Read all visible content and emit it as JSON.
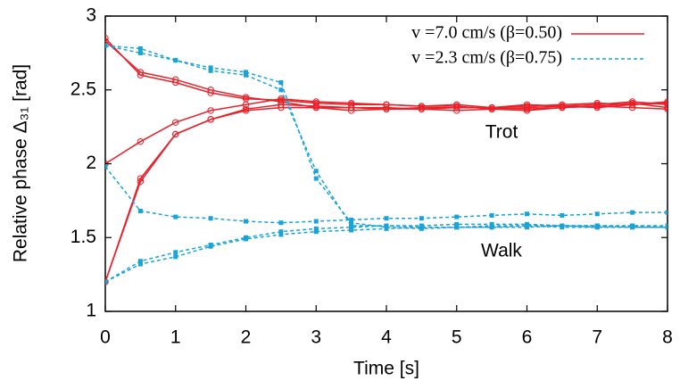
{
  "chart_data": {
    "type": "line",
    "x_label": "Time [s]",
    "y_label": "Relative phase Δ₃₁ [rad]",
    "annotations": [
      "Trot",
      "Walk"
    ],
    "x": [
      0,
      0.5,
      1,
      1.5,
      2,
      2.5,
      3,
      3.5,
      4,
      4.5,
      5,
      5.5,
      6,
      6.5,
      7,
      7.5,
      8
    ],
    "xlim": [
      0,
      8
    ],
    "xticks": [
      0,
      1,
      2,
      3,
      4,
      5,
      6,
      7,
      8
    ],
    "ylim": [
      1,
      3
    ],
    "yticks": [
      1,
      1.5,
      2,
      2.5,
      3
    ],
    "legend": "upper right",
    "series": [
      {
        "name": "v =7.0 cm/s (β=0.50)",
        "color": "#e8202a",
        "dashed": false,
        "runs": [
          [
            2.85,
            2.6,
            2.55,
            2.48,
            2.44,
            2.43,
            2.41,
            2.4,
            2.4,
            2.39,
            2.4,
            2.38,
            2.39,
            2.4,
            2.41,
            2.4,
            2.41
          ],
          [
            2.83,
            2.62,
            2.57,
            2.5,
            2.45,
            2.42,
            2.38,
            2.38,
            2.37,
            2.38,
            2.38,
            2.38,
            2.37,
            2.38,
            2.39,
            2.41,
            2.38
          ],
          [
            2.0,
            2.15,
            2.28,
            2.36,
            2.4,
            2.44,
            2.42,
            2.41,
            2.4,
            2.39,
            2.39,
            2.37,
            2.38,
            2.39,
            2.4,
            2.42,
            2.4
          ],
          [
            1.2,
            1.9,
            2.2,
            2.3,
            2.37,
            2.4,
            2.39,
            2.38,
            2.38,
            2.37,
            2.38,
            2.38,
            2.4,
            2.39,
            2.38,
            2.4,
            2.42
          ],
          [
            1.2,
            1.88,
            2.2,
            2.3,
            2.36,
            2.38,
            2.38,
            2.36,
            2.37,
            2.37,
            2.36,
            2.37,
            2.36,
            2.38,
            2.39,
            2.38,
            2.37
          ]
        ]
      },
      {
        "name": "v =2.3 cm/s (β=0.75)",
        "color": "#1aa3d9",
        "dashed": true,
        "runs": [
          [
            2.8,
            2.75,
            2.7,
            2.63,
            2.6,
            2.5,
            1.95,
            1.58,
            1.58,
            1.57,
            1.57,
            1.57,
            1.58,
            1.57,
            1.57,
            1.58,
            1.57
          ],
          [
            2.8,
            2.78,
            2.7,
            2.65,
            2.62,
            2.55,
            1.9,
            1.6,
            1.57,
            1.56,
            1.57,
            1.57,
            1.57,
            1.58,
            1.57,
            1.57,
            1.57
          ],
          [
            1.98,
            1.68,
            1.64,
            1.63,
            1.61,
            1.6,
            1.61,
            1.62,
            1.63,
            1.63,
            1.64,
            1.65,
            1.66,
            1.65,
            1.66,
            1.67,
            1.67
          ],
          [
            1.2,
            1.32,
            1.37,
            1.44,
            1.49,
            1.52,
            1.54,
            1.55,
            1.56,
            1.57,
            1.57,
            1.58,
            1.58,
            1.58,
            1.58,
            1.58,
            1.58
          ],
          [
            1.2,
            1.34,
            1.4,
            1.45,
            1.5,
            1.54,
            1.56,
            1.57,
            1.58,
            1.58,
            1.59,
            1.59,
            1.59,
            1.58,
            1.58,
            1.57,
            1.57
          ]
        ]
      }
    ]
  }
}
